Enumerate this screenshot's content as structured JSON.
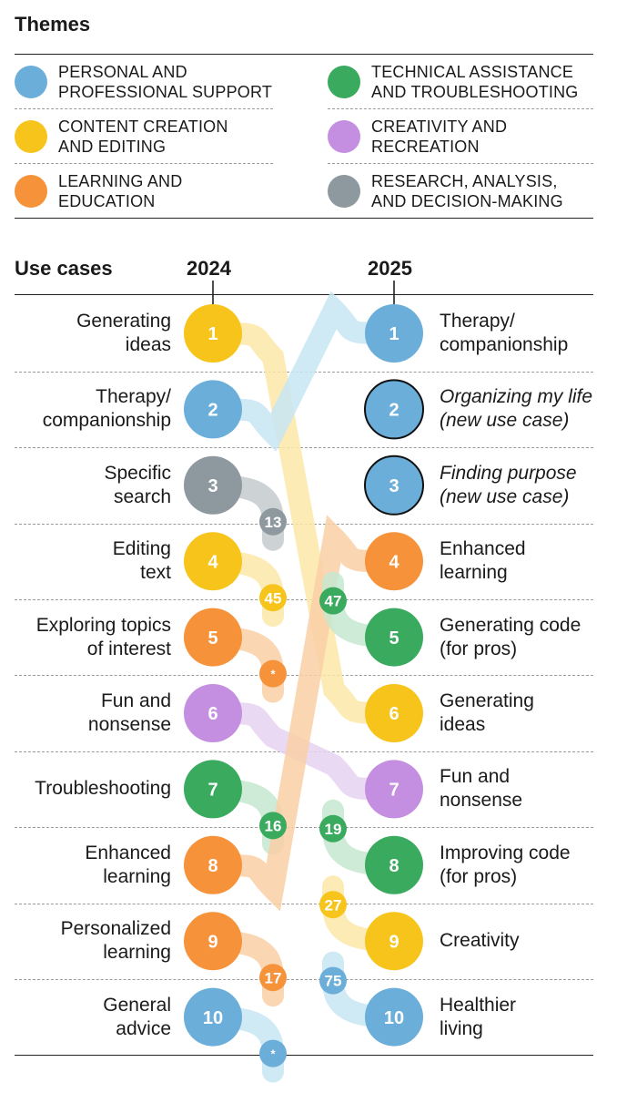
{
  "title": "Themes",
  "themes": [
    {
      "lines": [
        "PERSONAL AND",
        "PROFESSIONAL SUPPORT"
      ],
      "color": "#6aaed9"
    },
    {
      "lines": [
        "TECHNICAL ASSISTANCE",
        "AND TROUBLESHOOTING"
      ],
      "color": "#3aaa5f"
    },
    {
      "lines": [
        "CONTENT CREATION",
        "AND EDITING"
      ],
      "color": "#f7c41b"
    },
    {
      "lines": [
        "CREATIVITY AND",
        "RECREATION"
      ],
      "color": "#c48fe0"
    },
    {
      "lines": [
        "LEARNING AND",
        "EDUCATION"
      ],
      "color": "#f6923a"
    },
    {
      "lines": [
        "RESEARCH, ANALYSIS,",
        "AND DECISION-MAKING"
      ],
      "color": "#8e989f"
    }
  ],
  "section_title": "Use cases",
  "years": {
    "left": "2024",
    "right": "2025"
  },
  "ranks": [
    "1",
    "2",
    "3",
    "4",
    "5",
    "6",
    "7",
    "8",
    "9",
    "10"
  ],
  "use_cases_2024": [
    {
      "lines": [
        "Generating",
        "ideas"
      ]
    },
    {
      "lines": [
        "Therapy/",
        "companionship"
      ]
    },
    {
      "lines": [
        "Specific",
        "search"
      ]
    },
    {
      "lines": [
        "Editing",
        "text"
      ]
    },
    {
      "lines": [
        "Exploring topics",
        "of interest"
      ]
    },
    {
      "lines": [
        "Fun and",
        "nonsense"
      ]
    },
    {
      "lines": [
        "Troubleshooting"
      ]
    },
    {
      "lines": [
        "Enhanced",
        "learning"
      ]
    },
    {
      "lines": [
        "Personalized",
        "learning"
      ]
    },
    {
      "lines": [
        "General",
        "advice"
      ]
    }
  ],
  "use_cases_2025": [
    {
      "lines": [
        "Therapy/",
        "companionship"
      ]
    },
    {
      "lines": [
        "Organizing my life",
        "(new use case)"
      ]
    },
    {
      "lines": [
        "Finding purpose",
        "(new use case)"
      ]
    },
    {
      "lines": [
        "Enhanced",
        "learning"
      ]
    },
    {
      "lines": [
        "Generating code",
        "(for pros)"
      ]
    },
    {
      "lines": [
        "Generating",
        "ideas"
      ]
    },
    {
      "lines": [
        "Fun and",
        "nonsense"
      ]
    },
    {
      "lines": [
        "Improving code",
        "(for pros)"
      ]
    },
    {
      "lines": [
        "Creativity"
      ]
    },
    {
      "lines": [
        "Healthier",
        "living"
      ]
    }
  ],
  "chart_data": {
    "type": "bump",
    "years": [
      "2024",
      "2025"
    ],
    "theme_colors": {
      "personal_support": "#6aaed9",
      "technical": "#3aaa5f",
      "content": "#f7c41b",
      "creativity": "#c48fe0",
      "learning": "#f6923a",
      "research": "#8e989f"
    },
    "ranks_2024": [
      {
        "rank": 1,
        "label": "Generating ideas",
        "theme": "content",
        "rank_2025": "6"
      },
      {
        "rank": 2,
        "label": "Therapy/companionship",
        "theme": "personal_support",
        "rank_2025": "1"
      },
      {
        "rank": 3,
        "label": "Specific search",
        "theme": "research",
        "rank_2025": "13"
      },
      {
        "rank": 4,
        "label": "Editing text",
        "theme": "content",
        "rank_2025": "45"
      },
      {
        "rank": 5,
        "label": "Exploring topics of interest",
        "theme": "learning",
        "rank_2025": "*"
      },
      {
        "rank": 6,
        "label": "Fun and nonsense",
        "theme": "creativity",
        "rank_2025": "7"
      },
      {
        "rank": 7,
        "label": "Troubleshooting",
        "theme": "technical",
        "rank_2025": "16"
      },
      {
        "rank": 8,
        "label": "Enhanced learning",
        "theme": "learning",
        "rank_2025": "4"
      },
      {
        "rank": 9,
        "label": "Personalized learning",
        "theme": "learning",
        "rank_2025": "17"
      },
      {
        "rank": 10,
        "label": "General advice",
        "theme": "personal_support",
        "rank_2025": "*"
      }
    ],
    "ranks_2025": [
      {
        "rank": 1,
        "label": "Therapy/companionship",
        "theme": "personal_support",
        "rank_2024": "2"
      },
      {
        "rank": 2,
        "label": "Organizing my life (new use case)",
        "theme": "personal_support",
        "new": true
      },
      {
        "rank": 3,
        "label": "Finding purpose (new use case)",
        "theme": "personal_support",
        "new": true
      },
      {
        "rank": 4,
        "label": "Enhanced learning",
        "theme": "learning",
        "rank_2024": "8"
      },
      {
        "rank": 5,
        "label": "Generating code (for pros)",
        "theme": "technical",
        "rank_2024": "47"
      },
      {
        "rank": 6,
        "label": "Generating ideas",
        "theme": "content",
        "rank_2024": "1"
      },
      {
        "rank": 7,
        "label": "Fun and nonsense",
        "theme": "creativity",
        "rank_2024": "6"
      },
      {
        "rank": 8,
        "label": "Improving code (for pros)",
        "theme": "technical",
        "rank_2024": "19"
      },
      {
        "rank": 9,
        "label": "Creativity",
        "theme": "content",
        "rank_2024": "27"
      },
      {
        "rank": 10,
        "label": "Healthier living",
        "theme": "personal_support",
        "rank_2024": "75"
      }
    ]
  }
}
